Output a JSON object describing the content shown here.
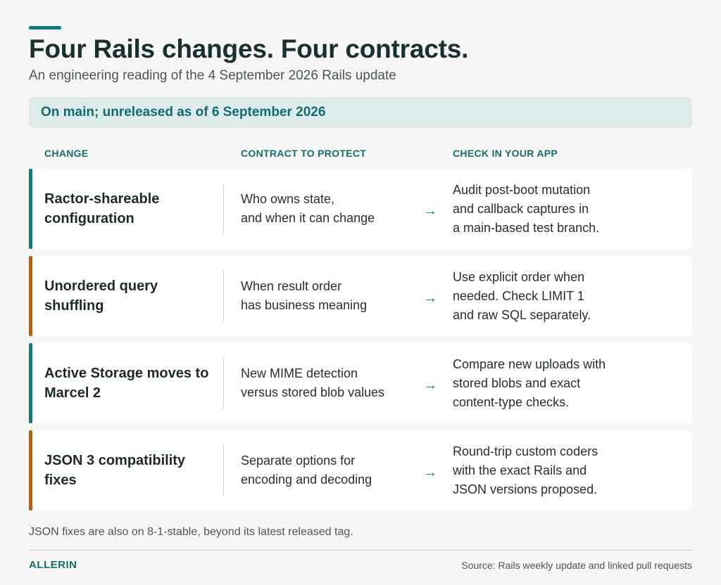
{
  "header": {
    "title": "Four Rails changes. Four contracts.",
    "subtitle": "An engineering reading of the 4 September 2026 Rails update"
  },
  "status": {
    "text": "On main; unreleased as of 6 September 2026"
  },
  "columns": {
    "change": "CHANGE",
    "contract": "CONTRACT TO PROTECT",
    "check": "CHECK IN YOUR APP"
  },
  "colors": {
    "teal": "#147a79",
    "amber": "#b5620f"
  },
  "arrow_glyph": "→",
  "rows": [
    {
      "accent": "teal",
      "change": "Ractor-shareable configuration",
      "contract_lines": [
        "Who owns state,",
        "and when it can change"
      ],
      "check_lines": [
        "Audit post-boot mutation",
        "and callback captures in",
        "a main-based test branch."
      ]
    },
    {
      "accent": "amber",
      "change": "Unordered query shuffling",
      "contract_lines": [
        "When result order",
        "has business meaning"
      ],
      "check_lines": [
        "Use explicit order when",
        "needed. Check LIMIT 1",
        "and raw SQL separately."
      ]
    },
    {
      "accent": "teal",
      "change": "Active Storage moves to Marcel 2",
      "contract_lines": [
        "New MIME detection",
        "versus stored blob values"
      ],
      "check_lines": [
        "Compare new uploads with",
        "stored blobs and exact",
        "content-type checks."
      ]
    },
    {
      "accent": "amber",
      "change": "JSON 3 compatibility fixes",
      "contract_lines": [
        "Separate options for",
        "encoding and decoding"
      ],
      "check_lines": [
        "Round-trip custom coders",
        "with the exact Rails and",
        "JSON versions proposed."
      ]
    }
  ],
  "footnote": "JSON fixes are also on 8-1-stable, beyond its latest released tag.",
  "footer": {
    "brand": "ALLERIN",
    "source": "Source: Rails weekly update and linked pull requests"
  }
}
